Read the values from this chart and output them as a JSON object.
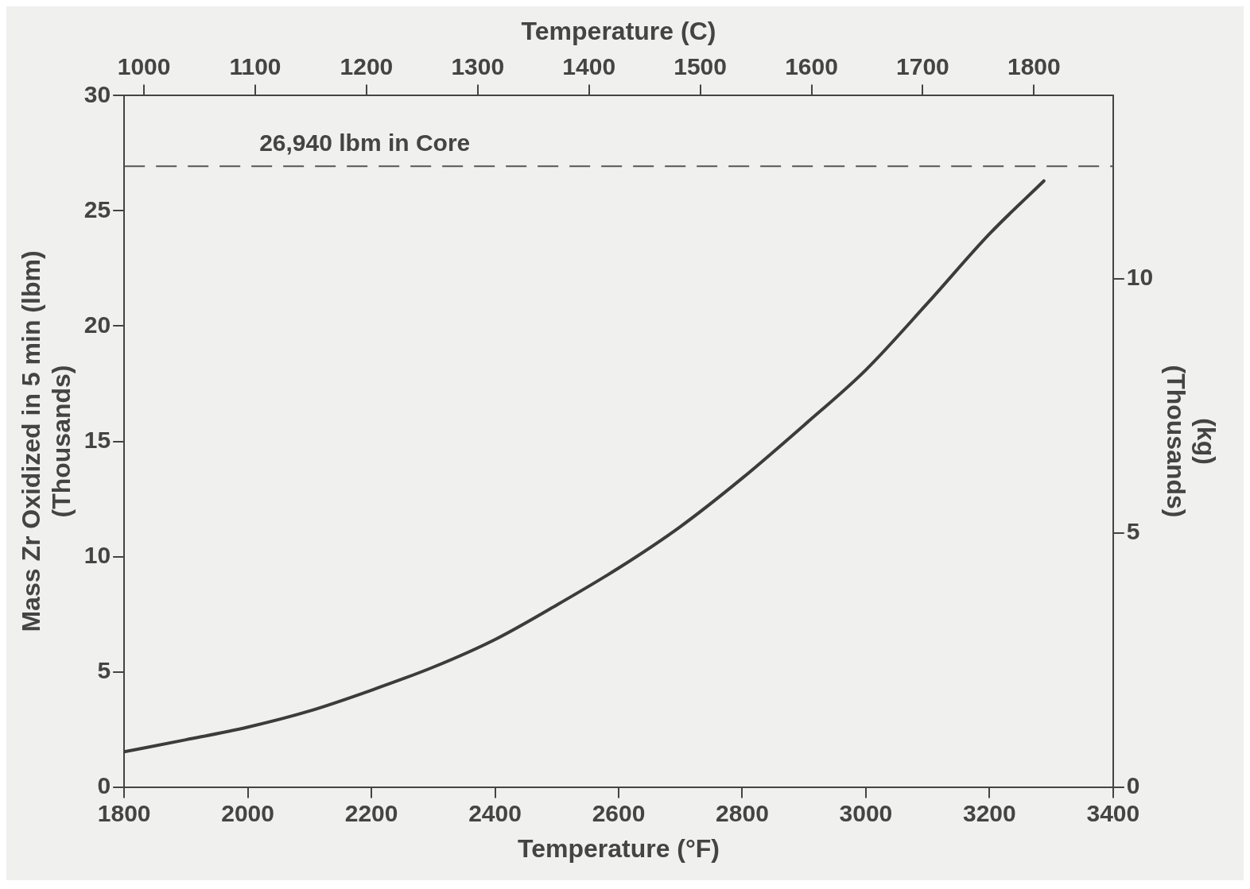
{
  "chart_data": {
    "type": "line",
    "xlabel": "Temperature (°F)",
    "x2label": "Temperature (C)",
    "ylabel": "Mass Zr Oxidized in 5 min (lbm)\n(Thousands)",
    "y2label": "(kg)\n(Thousands)",
    "x": [
      1800,
      1900,
      2000,
      2100,
      2200,
      2300,
      2400,
      2500,
      2600,
      2700,
      2800,
      2900,
      3000,
      3100,
      3200,
      3288
    ],
    "series": [
      {
        "color": "#3c3c3c",
        "values": [
          1.53,
          2.05,
          2.6,
          3.3,
          4.2,
          5.2,
          6.4,
          7.9,
          9.5,
          11.3,
          13.4,
          15.7,
          18.1,
          21.0,
          24.0,
          26.3
        ]
      }
    ],
    "xlim": [
      1800,
      3400
    ],
    "xticks": [
      1800,
      2000,
      2200,
      2400,
      2600,
      2800,
      3000,
      3200,
      3400
    ],
    "x2lim": [
      982.2,
      1871.1
    ],
    "x2ticks": [
      1000,
      1100,
      1200,
      1300,
      1400,
      1500,
      1600,
      1700,
      1800
    ],
    "ylim": [
      0,
      30
    ],
    "yticks": [
      0,
      5,
      10,
      15,
      20,
      25,
      30
    ],
    "y2lim": [
      0,
      13.61
    ],
    "y2ticks": [
      0,
      5,
      10
    ],
    "ref_lines": [
      {
        "axis": "y",
        "value": 26.94,
        "label": "26,940 lbm in Core",
        "line_style": "dashed",
        "color": "#555555"
      }
    ],
    "grid": false,
    "legend": false,
    "marker": "none",
    "line_style": "solid"
  }
}
